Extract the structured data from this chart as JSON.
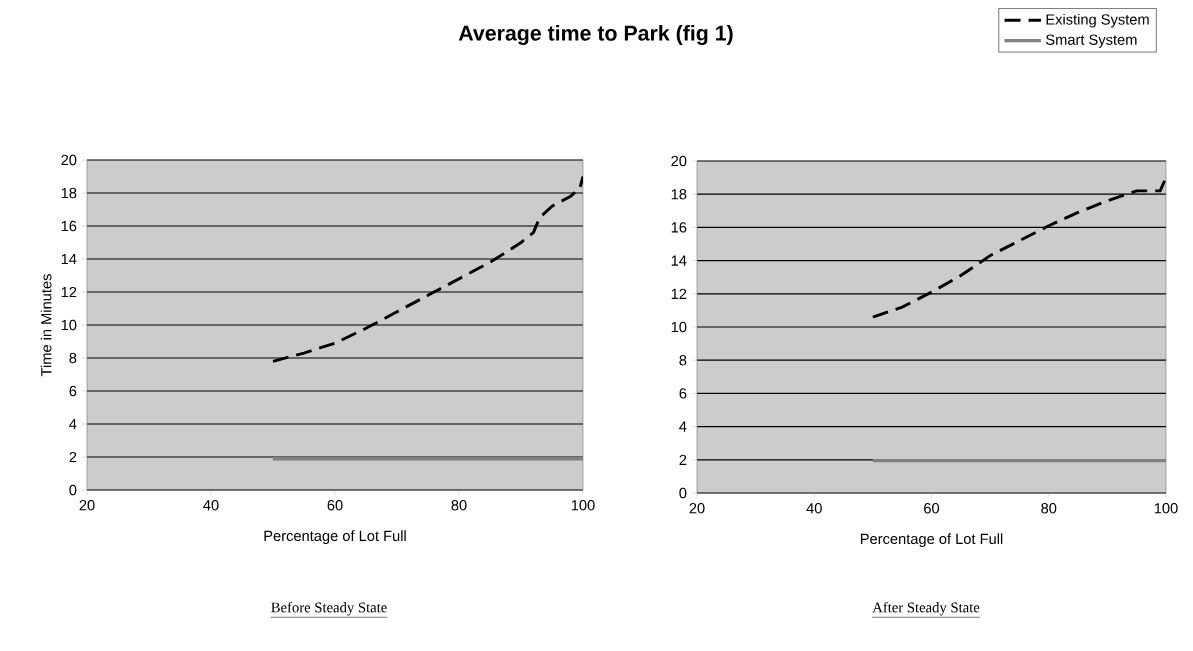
{
  "chart_data": [
    {
      "type": "line",
      "title": "Average time to Park (fig 1)",
      "xlabel": "Percentage of Lot Full",
      "ylabel": "Time in Minutes",
      "xlim": [
        20,
        100
      ],
      "ylim": [
        0,
        20
      ],
      "xticks": [
        20,
        40,
        60,
        80,
        100
      ],
      "yticks": [
        0,
        2,
        4,
        6,
        8,
        10,
        12,
        14,
        16,
        18,
        20
      ],
      "grid": "y",
      "legend": false,
      "annotations": [
        "Before Steady State"
      ],
      "series": [
        {
          "color": "#000000",
          "line_style": "dashed",
          "x": [
            50,
            55,
            60,
            65,
            70,
            75,
            80,
            85,
            88,
            90,
            92,
            93,
            95,
            98,
            99.5,
            100
          ],
          "values": [
            7.8,
            8.3,
            8.9,
            9.8,
            10.8,
            11.8,
            12.8,
            13.8,
            14.5,
            15,
            15.6,
            16.5,
            17.2,
            17.8,
            18.3,
            19
          ]
        },
        {
          "color": "#808080",
          "line_style": "solid",
          "x": [
            50,
            100
          ],
          "values": [
            1.9,
            1.9
          ]
        }
      ]
    },
    {
      "type": "line",
      "xlabel": "Percentage of Lot Full",
      "xlim": [
        20,
        100
      ],
      "ylim": [
        0,
        20
      ],
      "xticks": [
        20,
        40,
        60,
        80,
        100
      ],
      "yticks": [
        0,
        2,
        4,
        6,
        8,
        10,
        12,
        14,
        16,
        18,
        20
      ],
      "grid": "y",
      "legend": "top right",
      "annotations": [
        "After Steady State"
      ],
      "series": [
        {
          "name": "Existing System",
          "color": "#000000",
          "line_style": "dashed",
          "x": [
            50,
            55,
            60,
            65,
            70,
            75,
            80,
            85,
            90,
            95,
            99,
            100
          ],
          "values": [
            10.6,
            11.2,
            12.1,
            13.1,
            14.3,
            15.2,
            16.1,
            16.9,
            17.6,
            18.2,
            18.2,
            19
          ]
        },
        {
          "name": "Smart System",
          "color": "#808080",
          "line_style": "solid",
          "x": [
            50,
            100
          ],
          "values": [
            1.95,
            1.95
          ]
        }
      ]
    }
  ]
}
